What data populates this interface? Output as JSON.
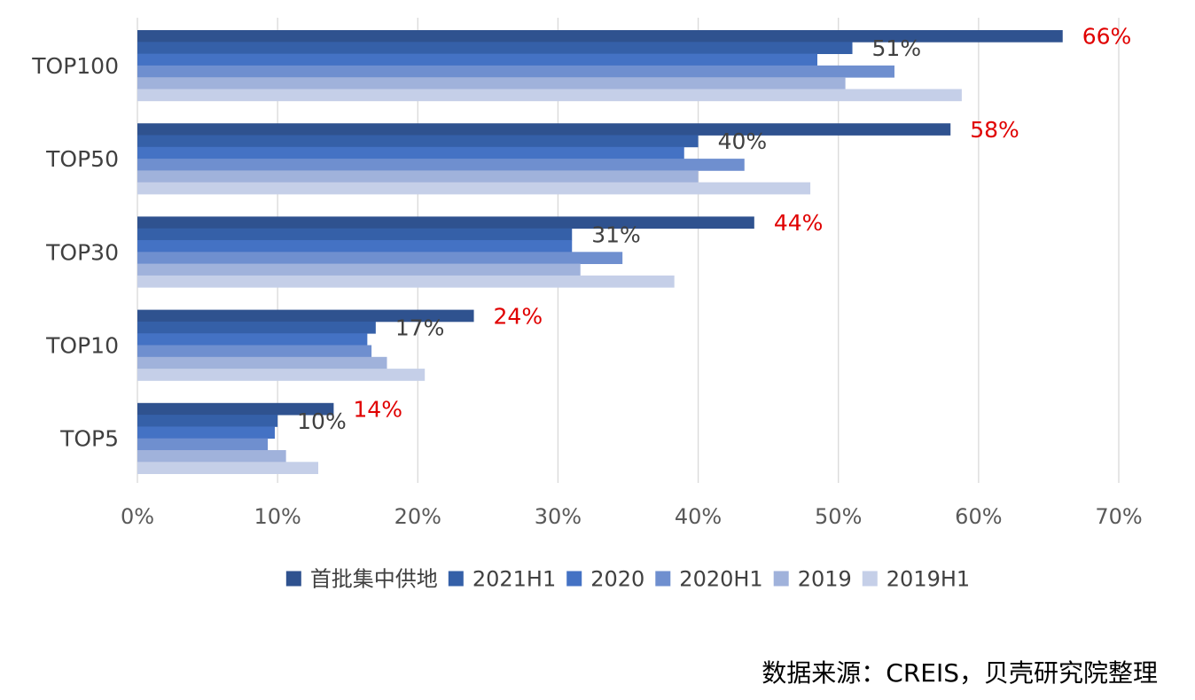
{
  "chart_data": {
    "type": "bar",
    "orientation": "horizontal",
    "categories": [
      "TOP100",
      "TOP50",
      "TOP30",
      "TOP10",
      "TOP5"
    ],
    "series": [
      {
        "name": "首批集中供地",
        "color": "#2f528f",
        "values": [
          66,
          58,
          44,
          24,
          14
        ]
      },
      {
        "name": "2021H1",
        "color": "#3560a8",
        "values": [
          51,
          40,
          31,
          17,
          10
        ]
      },
      {
        "name": "2020",
        "color": "#4472c4",
        "values": [
          48.5,
          39,
          31,
          16.4,
          9.8
        ]
      },
      {
        "name": "2020H1",
        "color": "#6f8fcf",
        "values": [
          54,
          43.3,
          34.6,
          16.7,
          9.3
        ]
      },
      {
        "name": "2019",
        "color": "#a0b2db",
        "values": [
          50.5,
          40,
          31.6,
          17.8,
          10.6
        ]
      },
      {
        "name": "2019H1",
        "color": "#c5cfe8",
        "values": [
          58.8,
          48,
          38.3,
          20.5,
          12.9
        ]
      }
    ],
    "data_labels": [
      {
        "category": "TOP100",
        "series": "首批集中供地",
        "text": "66%",
        "color": "#e00000"
      },
      {
        "category": "TOP100",
        "series": "2021H1",
        "text": "51%",
        "color": "#404040"
      },
      {
        "category": "TOP50",
        "series": "首批集中供地",
        "text": "58%",
        "color": "#e00000"
      },
      {
        "category": "TOP50",
        "series": "2021H1",
        "text": "40%",
        "color": "#404040"
      },
      {
        "category": "TOP30",
        "series": "首批集中供地",
        "text": "44%",
        "color": "#e00000"
      },
      {
        "category": "TOP30",
        "series": "2021H1",
        "text": "31%",
        "color": "#404040"
      },
      {
        "category": "TOP10",
        "series": "首批集中供地",
        "text": "24%",
        "color": "#e00000"
      },
      {
        "category": "TOP10",
        "series": "2021H1",
        "text": "17%",
        "color": "#404040"
      },
      {
        "category": "TOP5",
        "series": "首批集中供地",
        "text": "14%",
        "color": "#e00000"
      },
      {
        "category": "TOP5",
        "series": "2021H1",
        "text": "10%",
        "color": "#404040"
      }
    ],
    "xlim": [
      0,
      70
    ],
    "xticks": [
      0,
      10,
      20,
      30,
      40,
      50,
      60,
      70
    ],
    "xtick_labels": [
      "0%",
      "10%",
      "20%",
      "30%",
      "40%",
      "50%",
      "60%",
      "70%"
    ],
    "grid": "vertical",
    "legend_position": "bottom",
    "gridline_color": "#d9d9d9"
  },
  "source_note": "数据来源：CREIS，贝壳研究院整理"
}
